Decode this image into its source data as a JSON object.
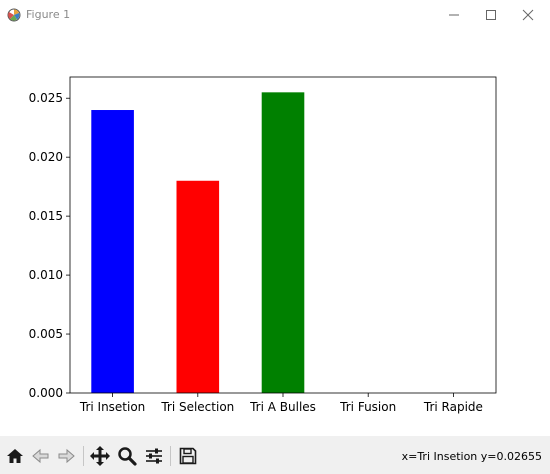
{
  "window": {
    "title": "Figure 1"
  },
  "chart_data": {
    "type": "bar",
    "categories": [
      "Tri Insetion",
      "Tri Selection",
      "Tri A Bulles",
      "Tri Fusion",
      "Tri Rapide"
    ],
    "values": [
      0.024,
      0.018,
      0.0255,
      0.0,
      0.0
    ],
    "colors": [
      "#0000ff",
      "#ff0000",
      "#008000",
      "#0000ff",
      "#0000ff"
    ],
    "yticks": [
      "0.000",
      "0.005",
      "0.010",
      "0.015",
      "0.020",
      "0.025"
    ],
    "ytick_values": [
      0,
      0.005,
      0.01,
      0.015,
      0.02,
      0.025
    ],
    "ylim": [
      0,
      0.0268
    ],
    "grid": false,
    "title": "",
    "xlabel": "",
    "ylabel": ""
  },
  "toolbar": {
    "coords": "x=Tri Insetion y=0.02655"
  }
}
